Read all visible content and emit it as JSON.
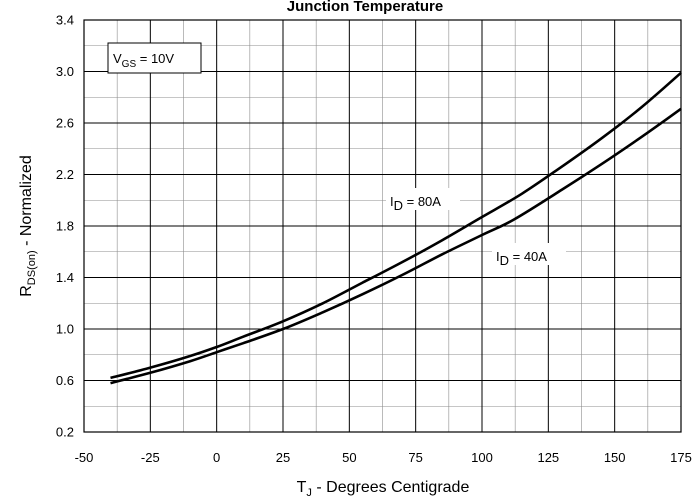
{
  "chart_data": {
    "type": "line",
    "title": "Junction Temperature",
    "xlabel": {
      "main": "T",
      "sub": "J",
      "rest": " - Degrees Centigrade"
    },
    "ylabel": {
      "main": "R",
      "sub": "DS(on)",
      "rest": " - Normalized"
    },
    "xlim": [
      -50,
      175
    ],
    "ylim": [
      0.2,
      3.4
    ],
    "xticks": [
      "-50",
      "-25",
      "0",
      "25",
      "50",
      "75",
      "100",
      "125",
      "150",
      "175"
    ],
    "yticks": [
      "0.2",
      "0.6",
      "1.0",
      "1.4",
      "1.8",
      "2.2",
      "2.6",
      "3.0",
      "3.4"
    ],
    "grid": true,
    "condition_label": {
      "main": "V",
      "sub": "GS",
      "rest": " = 10V"
    },
    "series": [
      {
        "name": "I D = 80A",
        "label_main": "I",
        "label_sub": "D",
        "label_rest": " = 80A",
        "color": "#000000",
        "x": [
          -40,
          -25,
          -10,
          0,
          10,
          25,
          40,
          55,
          70,
          85,
          100,
          115,
          130,
          145,
          160,
          175
        ],
        "y": [
          0.62,
          0.7,
          0.79,
          0.86,
          0.94,
          1.06,
          1.2,
          1.36,
          1.52,
          1.69,
          1.87,
          2.05,
          2.26,
          2.48,
          2.72,
          2.99
        ]
      },
      {
        "name": "I D = 40A",
        "label_main": "I",
        "label_sub": "D",
        "label_rest": " = 40A",
        "color": "#000000",
        "x": [
          -40,
          -25,
          -10,
          0,
          10,
          25,
          40,
          55,
          70,
          85,
          100,
          112,
          130,
          145,
          160,
          175
        ],
        "y": [
          0.58,
          0.66,
          0.75,
          0.82,
          0.89,
          1.0,
          1.13,
          1.27,
          1.42,
          1.58,
          1.73,
          1.85,
          2.08,
          2.28,
          2.49,
          2.71
        ]
      }
    ]
  }
}
